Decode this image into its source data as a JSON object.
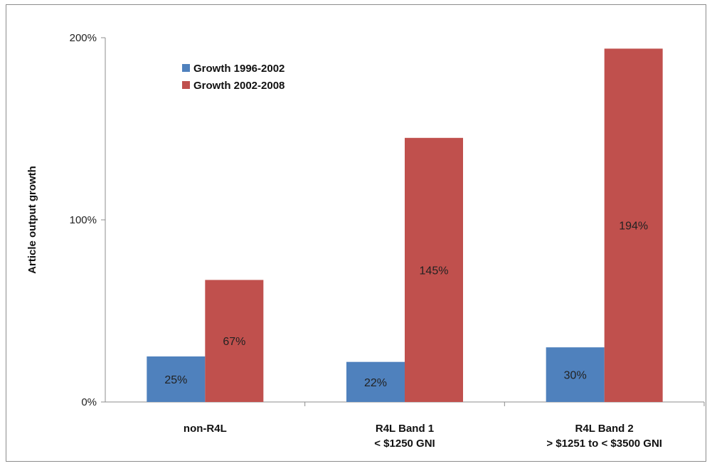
{
  "chart_data": {
    "type": "bar",
    "ylabel": "Article output growth",
    "xlabel": "",
    "ylim": [
      0,
      200
    ],
    "yticks": [
      {
        "value": 0,
        "label": "0%"
      },
      {
        "value": 100,
        "label": "100%"
      },
      {
        "value": 200,
        "label": "200%"
      }
    ],
    "categories": [
      {
        "lines": [
          "non-R4L"
        ]
      },
      {
        "lines": [
          "R4L Band 1",
          "< $1250 GNI"
        ]
      },
      {
        "lines": [
          "R4L Band 2",
          "> $1251 to < $3500 GNI"
        ]
      }
    ],
    "series": [
      {
        "name": "Growth 1996-2002",
        "color": "#4f81bd",
        "values": [
          25,
          22,
          30
        ],
        "labels": [
          "25%",
          "22%",
          "30%"
        ]
      },
      {
        "name": "Growth 2002-2008",
        "color": "#c0504d",
        "values": [
          67,
          145,
          194
        ],
        "labels": [
          "67%",
          "145%",
          "194%"
        ]
      }
    ],
    "legend_position": "top-left",
    "grid": false
  }
}
